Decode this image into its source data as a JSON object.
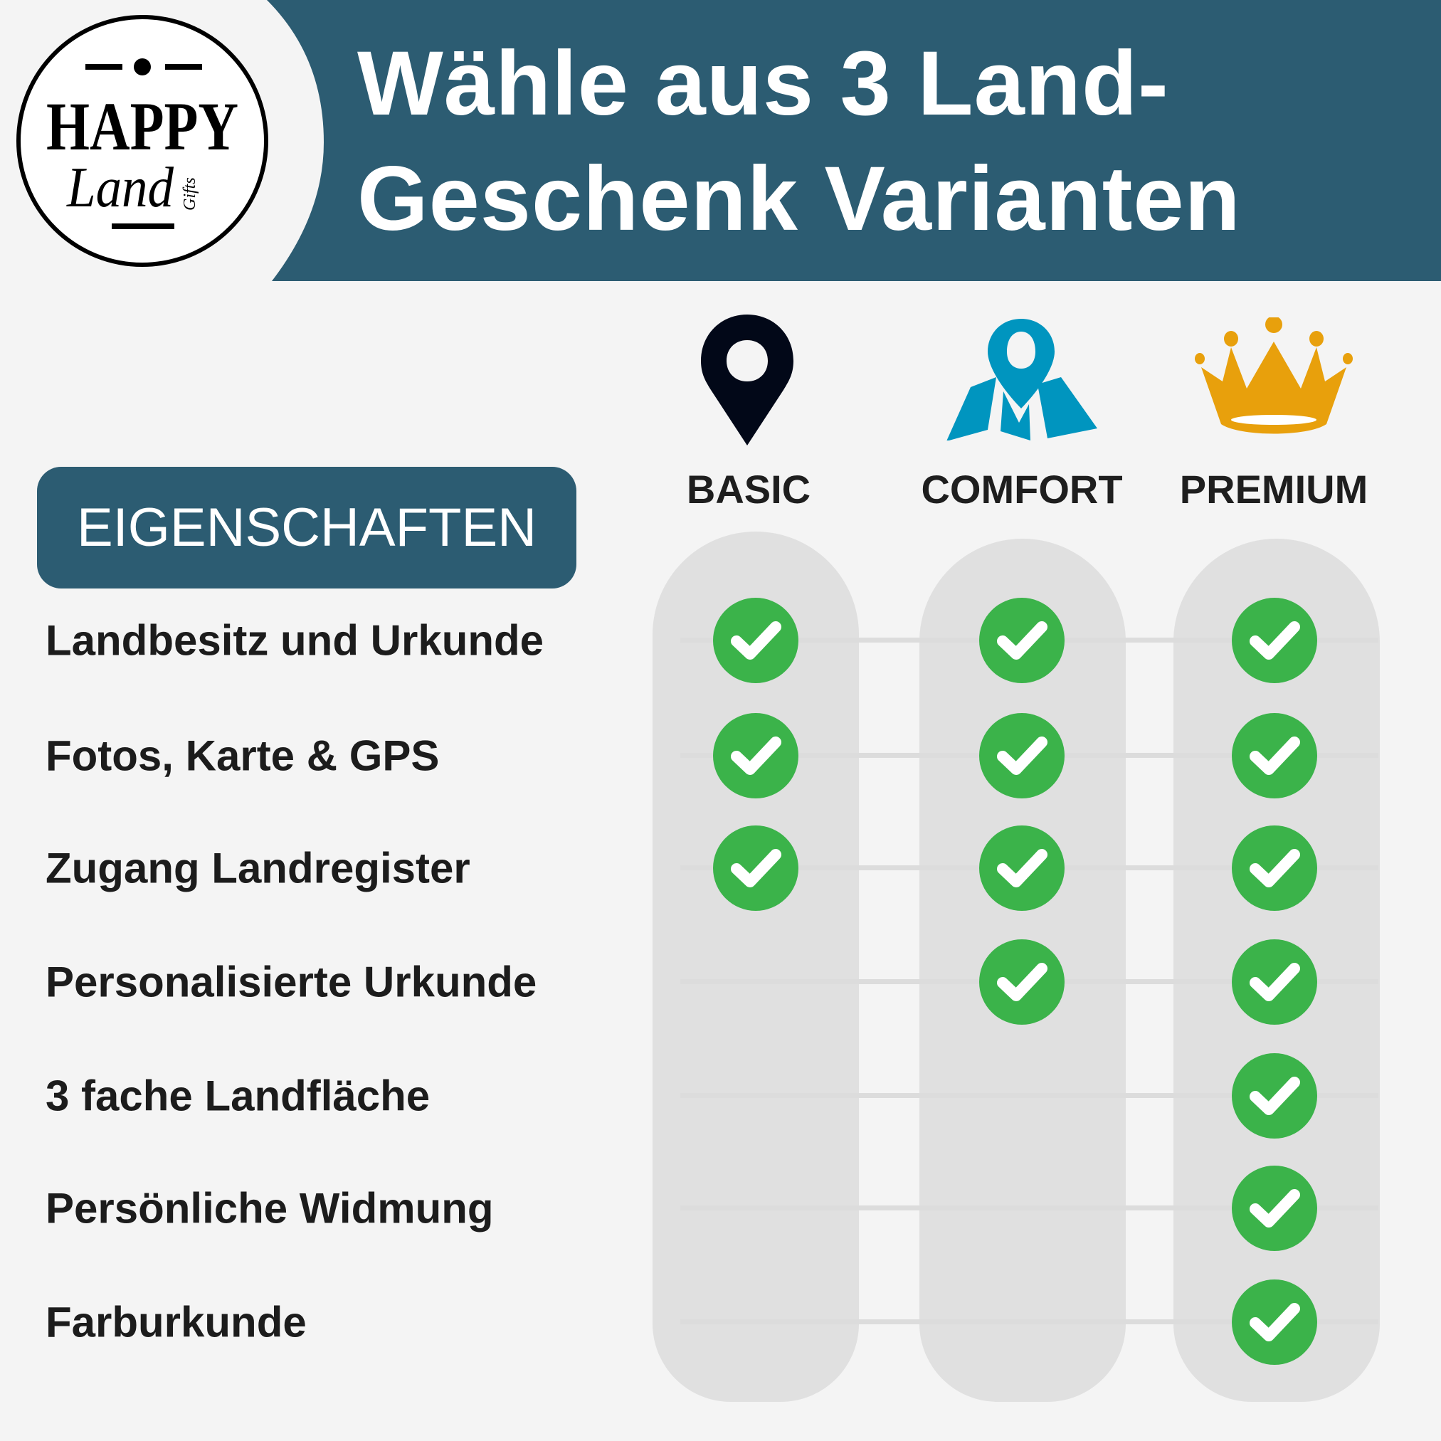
{
  "brand": {
    "logo_text": "HAPPY Land Gifts"
  },
  "header": {
    "title_line1": "Wähle aus 3 Land-",
    "title_line2": "Geschenk Varianten"
  },
  "features_heading": "EIGENSCHAFTEN",
  "plans": [
    {
      "label": "BASIC",
      "icon": "map-pin-icon",
      "color": "#020818"
    },
    {
      "label": "COMFORT",
      "icon": "map-location-icon",
      "color": "#0095bf"
    },
    {
      "label": "PREMIUM",
      "icon": "crown-icon",
      "color": "#e8a00c"
    }
  ],
  "features": [
    {
      "label": "Landbesitz und Urkunde",
      "included": [
        true,
        true,
        true
      ]
    },
    {
      "label": "Fotos, Karte & GPS",
      "included": [
        true,
        true,
        true
      ]
    },
    {
      "label": "Zugang Landregister",
      "included": [
        true,
        true,
        true
      ]
    },
    {
      "label": "Personalisierte Urkunde",
      "included": [
        false,
        true,
        true
      ]
    },
    {
      "label": "3 fache Landfläche",
      "included": [
        false,
        false,
        true
      ]
    },
    {
      "label": "Persönliche Widmung",
      "included": [
        false,
        false,
        true
      ]
    },
    {
      "label": "Farburkunde",
      "included": [
        false,
        false,
        true
      ]
    }
  ],
  "colors": {
    "banner": "#2c5c72",
    "check": "#3bb34a",
    "background": "#f4f4f4",
    "column": "#e0e0e0"
  }
}
